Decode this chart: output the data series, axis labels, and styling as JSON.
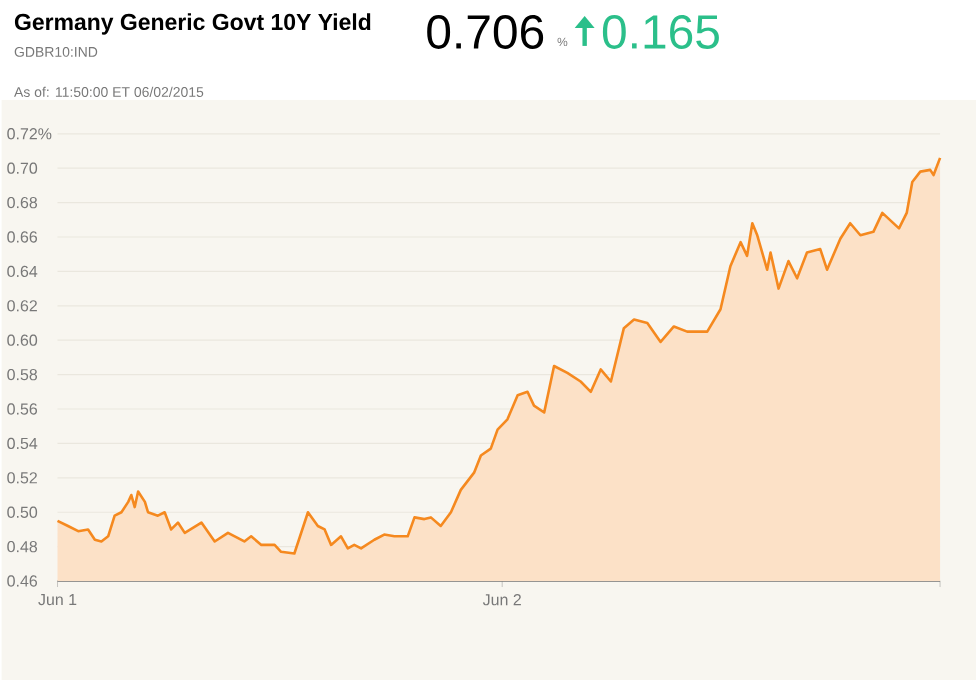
{
  "chart_data": {
    "type": "area",
    "title": "Germany Generic Govt 10Y Yield",
    "subtitle": "GDBR10:IND",
    "annotations": [
      "0.706",
      "%",
      "0.165",
      "As of: 11:50:00 ET 06/02/2015"
    ],
    "xlim": [
      "2015-06-01T00:00",
      "2015-06-02T23:38"
    ],
    "xticks": [
      {
        "value": "2015-06-01T00:00",
        "label": "Jun 1"
      },
      {
        "value": "2015-06-02T00:00",
        "label": "Jun 2"
      },
      {
        "value": "2015-06-02T23:38",
        "label": null
      }
    ],
    "ylim": [
      0.46,
      0.72
    ],
    "yticks": [
      0.46,
      0.48,
      {
        "value": 0.5,
        "label": "0.50"
      },
      0.52,
      0.54,
      0.56,
      0.58,
      {
        "value": 0.6,
        "label": "0.60"
      },
      0.62,
      0.64,
      0.66,
      0.68,
      {
        "value": 0.7,
        "label": "0.70"
      },
      {
        "value": 0.72,
        "label": "0.72%"
      }
    ],
    "grid": "y",
    "marker": "none",
    "line_style": "solid",
    "series": [
      {
        "color": "#f5891f",
        "x": [
          "2015-06-01T00:00",
          "2015-06-01T00:34",
          "2015-06-01T01:07",
          "2015-06-01T01:39",
          "2015-06-01T02:01",
          "2015-06-01T02:22",
          "2015-06-01T02:44",
          "2015-06-01T03:05",
          "2015-06-01T03:27",
          "2015-06-01T03:49",
          "2015-06-01T03:59",
          "2015-06-01T04:10",
          "2015-06-01T04:21",
          "2015-06-01T04:43",
          "2015-06-01T04:53",
          "2015-06-01T05:25",
          "2015-06-01T05:47",
          "2015-06-01T06:08",
          "2015-06-01T06:30",
          "2015-06-01T06:52",
          "2015-06-01T07:46",
          "2015-06-01T08:29",
          "2015-06-01T09:12",
          "2015-06-01T10:05",
          "2015-06-01T10:27",
          "2015-06-01T11:00",
          "2015-06-01T11:43",
          "2015-06-01T12:04",
          "2015-06-01T12:47",
          "2015-06-01T13:31",
          "2015-06-01T14:03",
          "2015-06-01T14:25",
          "2015-06-01T14:46",
          "2015-06-01T15:18",
          "2015-06-01T15:40",
          "2015-06-01T16:01",
          "2015-06-01T16:23",
          "2015-06-01T17:06",
          "2015-06-01T17:38",
          "2015-06-01T18:11",
          "2015-06-01T18:54",
          "2015-06-01T19:16",
          "2015-06-01T19:48",
          "2015-06-01T20:09",
          "2015-06-01T20:41",
          "2015-06-01T21:14",
          "2015-06-01T21:46",
          "2015-06-01T22:29",
          "2015-06-01T22:51",
          "2015-06-01T23:23",
          "2015-06-01T23:45",
          "2015-06-02T00:17",
          "2015-06-02T00:50",
          "2015-06-02T01:22",
          "2015-06-02T01:43",
          "2015-06-02T02:16",
          "2015-06-02T02:48",
          "2015-06-02T03:31",
          "2015-06-02T04:14",
          "2015-06-02T04:47",
          "2015-06-02T05:19",
          "2015-06-02T05:52",
          "2015-06-02T06:34",
          "2015-06-02T07:07",
          "2015-06-02T07:50",
          "2015-06-02T08:33",
          "2015-06-02T09:16",
          "2015-06-02T09:59",
          "2015-06-02T11:04",
          "2015-06-02T11:47",
          "2015-06-02T12:19",
          "2015-06-02T12:52",
          "2015-06-02T13:13",
          "2015-06-02T13:30",
          "2015-06-02T13:46",
          "2015-06-02T14:18",
          "2015-06-02T14:29",
          "2015-06-02T14:55",
          "2015-06-02T15:27",
          "2015-06-02T15:55",
          "2015-06-02T16:27",
          "2015-06-02T17:10",
          "2015-06-02T17:32",
          "2015-06-02T18:15",
          "2015-06-02T18:47",
          "2015-06-02T19:20",
          "2015-06-02T20:02",
          "2015-06-02T20:31",
          "2015-06-02T21:25",
          "2015-06-02T21:50",
          "2015-06-02T22:08",
          "2015-06-02T22:34",
          "2015-06-02T23:06",
          "2015-06-02T23:17",
          "2015-06-02T23:38"
        ],
        "values": [
          0.495,
          0.492,
          0.489,
          0.49,
          0.484,
          0.483,
          0.486,
          0.498,
          0.5,
          0.506,
          0.51,
          0.503,
          0.512,
          0.506,
          0.5,
          0.498,
          0.5,
          0.49,
          0.494,
          0.488,
          0.494,
          0.483,
          0.488,
          0.483,
          0.486,
          0.481,
          0.481,
          0.477,
          0.476,
          0.5,
          0.492,
          0.49,
          0.481,
          0.486,
          0.479,
          0.481,
          0.479,
          0.484,
          0.487,
          0.486,
          0.486,
          0.497,
          0.496,
          0.497,
          0.492,
          0.5,
          0.513,
          0.523,
          0.533,
          0.537,
          0.548,
          0.554,
          0.568,
          0.57,
          0.562,
          0.558,
          0.585,
          0.581,
          0.576,
          0.57,
          0.583,
          0.576,
          0.607,
          0.612,
          0.61,
          0.599,
          0.608,
          0.605,
          0.605,
          0.618,
          0.643,
          0.657,
          0.649,
          0.668,
          0.661,
          0.641,
          0.651,
          0.63,
          0.646,
          0.636,
          0.651,
          0.653,
          0.641,
          0.659,
          0.668,
          0.661,
          0.663,
          0.674,
          0.665,
          0.674,
          0.692,
          0.698,
          0.699,
          0.696,
          0.706
        ]
      }
    ]
  }
}
